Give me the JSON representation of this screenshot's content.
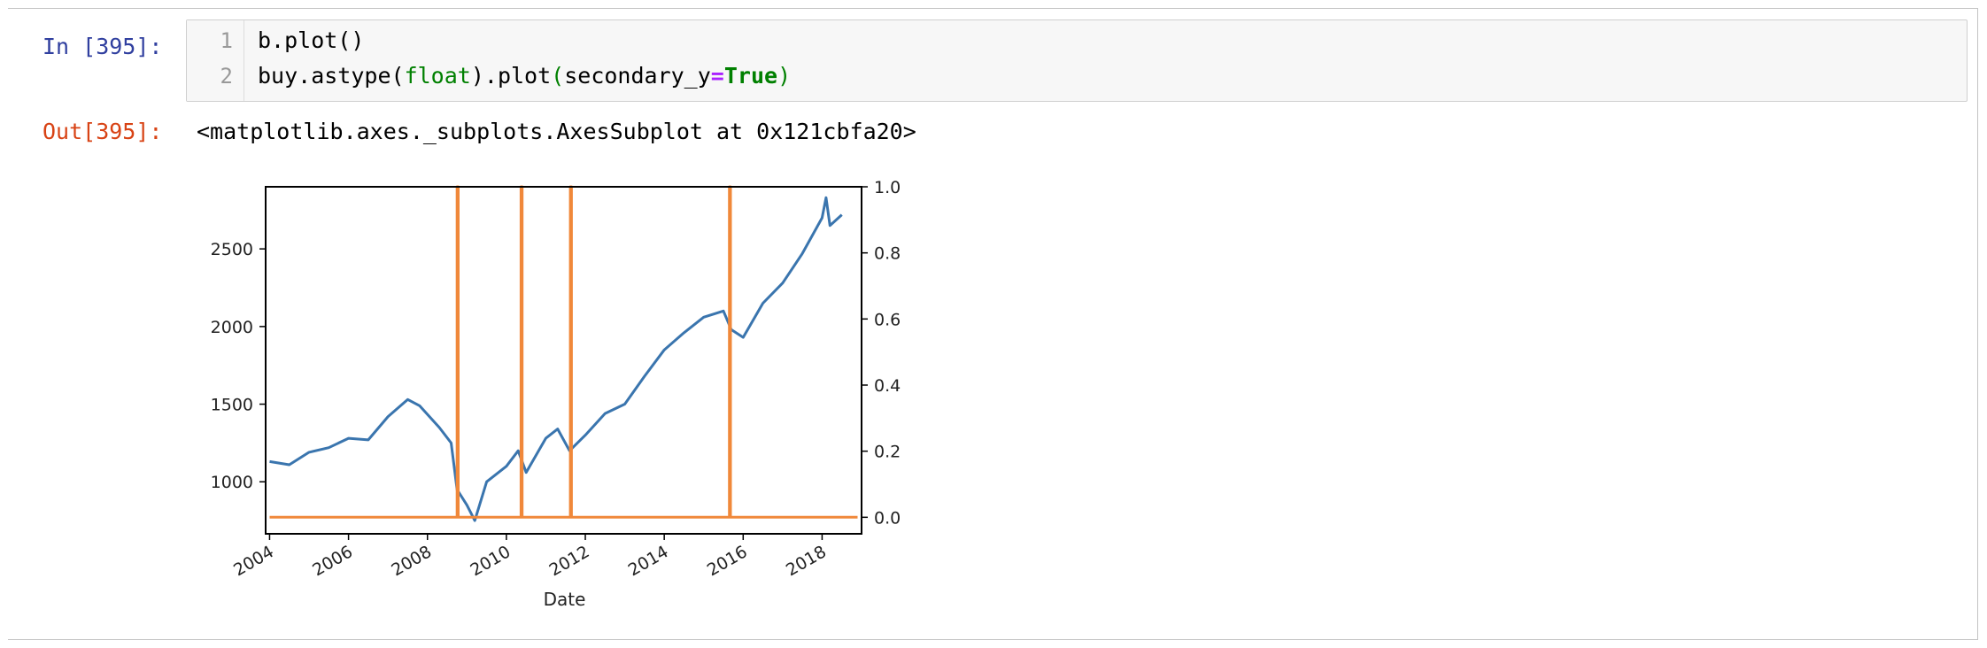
{
  "cell": {
    "in_prompt": "In [395]:",
    "out_prompt": "Out[395]:",
    "code_lines": [
      {
        "number": "1",
        "text": "b.plot()"
      },
      {
        "number": "2",
        "text": "buy.astype(float).plot(secondary_y=True)"
      }
    ],
    "code_tokens": {
      "line2_a": "buy.astype(",
      "line2_b": "float",
      "line2_c": ").plot",
      "line2_d": "(",
      "line2_e": "secondary_y",
      "line2_f": "=",
      "line2_g": "True",
      "line2_h": ")"
    },
    "output_text": "<matplotlib.axes._subplots.AxesSubplot at 0x121cbfa20>"
  },
  "colors": {
    "cell_bar": "#42a5f5",
    "in_prompt": "#303f9f",
    "out_prompt": "#d84315",
    "series_price": "#3a75ae",
    "series_buy": "#f0883a"
  },
  "chart_data": {
    "type": "line",
    "xlabel": "Date",
    "x_ticks": [
      "2004",
      "2006",
      "2008",
      "2010",
      "2012",
      "2014",
      "2016",
      "2018"
    ],
    "xlim": [
      2003.9,
      2019.0
    ],
    "left_axis": {
      "ticks": [
        "1000",
        "1500",
        "2000",
        "2500"
      ],
      "tick_values": [
        1000,
        1500,
        2000,
        2500
      ],
      "ylim": [
        665,
        2900
      ]
    },
    "right_axis": {
      "ticks": [
        "0.0",
        "0.2",
        "0.4",
        "0.6",
        "0.8",
        "1.0"
      ],
      "tick_values": [
        0.0,
        0.2,
        0.4,
        0.6,
        0.8,
        1.0
      ],
      "ylim": [
        -0.05,
        1.0
      ]
    },
    "series": [
      {
        "axis": "left",
        "x": [
          2004.0,
          2004.5,
          2005.0,
          2005.5,
          2006.0,
          2006.5,
          2007.0,
          2007.5,
          2007.8,
          2008.3,
          2008.6,
          2008.75,
          2009.0,
          2009.2,
          2009.5,
          2010.0,
          2010.3,
          2010.5,
          2011.0,
          2011.3,
          2011.6,
          2012.0,
          2012.5,
          2013.0,
          2013.5,
          2014.0,
          2014.5,
          2015.0,
          2015.5,
          2015.7,
          2016.0,
          2016.5,
          2017.0,
          2017.5,
          2018.0,
          2018.1,
          2018.2,
          2018.5
        ],
        "values": [
          1130,
          1110,
          1190,
          1220,
          1280,
          1270,
          1420,
          1530,
          1490,
          1350,
          1250,
          950,
          850,
          750,
          1000,
          1100,
          1200,
          1060,
          1280,
          1340,
          1200,
          1300,
          1440,
          1500,
          1680,
          1850,
          1960,
          2060,
          2100,
          1980,
          1930,
          2150,
          2280,
          2470,
          2700,
          2830,
          2650,
          2720
        ]
      },
      {
        "axis": "right",
        "x": [
          2004.0,
          2008.75,
          2008.75,
          2008.78,
          2008.78,
          2010.37,
          2010.37,
          2010.4,
          2010.4,
          2011.62,
          2011.62,
          2011.65,
          2011.65,
          2015.65,
          2015.65,
          2015.68,
          2015.68,
          2018.9
        ],
        "values": [
          0,
          0,
          1,
          1,
          0,
          0,
          1,
          1,
          0,
          0,
          1,
          1,
          0,
          0,
          1,
          1,
          0,
          0
        ]
      }
    ]
  }
}
